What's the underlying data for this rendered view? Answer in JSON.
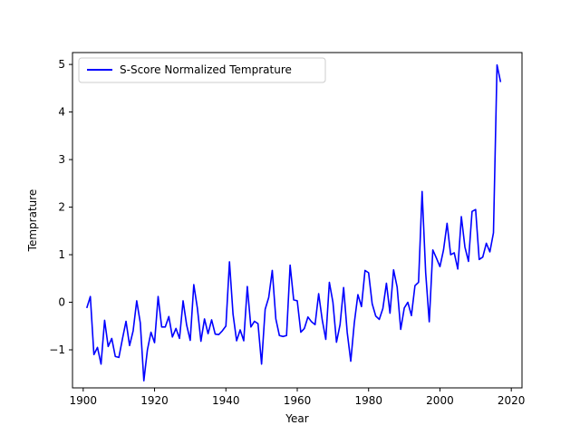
{
  "chart_data": {
    "type": "line",
    "title": "",
    "xlabel": "Year",
    "ylabel": "Temprature",
    "xlim": [
      1897,
      2023
    ],
    "ylim": [
      -1.8,
      5.25
    ],
    "x_ticks": [
      1900,
      1920,
      1940,
      1960,
      1980,
      2000,
      2020
    ],
    "y_ticks": [
      -1,
      0,
      1,
      2,
      3,
      4,
      5
    ],
    "grid": false,
    "legend_position": "upper left",
    "series": [
      {
        "name": "S-Score Normalized Temprature",
        "color": "#0000ff",
        "x": [
          1901,
          1902,
          1903,
          1904,
          1905,
          1906,
          1907,
          1908,
          1909,
          1910,
          1911,
          1912,
          1913,
          1914,
          1915,
          1916,
          1917,
          1918,
          1919,
          1920,
          1921,
          1922,
          1923,
          1924,
          1925,
          1926,
          1927,
          1928,
          1929,
          1930,
          1931,
          1932,
          1933,
          1934,
          1935,
          1936,
          1937,
          1938,
          1939,
          1940,
          1941,
          1942,
          1943,
          1944,
          1945,
          1946,
          1947,
          1948,
          1949,
          1950,
          1951,
          1952,
          1953,
          1954,
          1955,
          1956,
          1957,
          1958,
          1959,
          1960,
          1961,
          1962,
          1963,
          1964,
          1965,
          1966,
          1967,
          1968,
          1969,
          1970,
          1971,
          1972,
          1973,
          1974,
          1975,
          1976,
          1977,
          1978,
          1979,
          1980,
          1981,
          1982,
          1983,
          1984,
          1985,
          1986,
          1987,
          1988,
          1989,
          1990,
          1991,
          1992,
          1993,
          1994,
          1995,
          1996,
          1997,
          1998,
          1999,
          2000,
          2001,
          2002,
          2003,
          2004,
          2005,
          2006,
          2007,
          2008,
          2009,
          2010,
          2011,
          2012,
          2013,
          2014,
          2015,
          2016,
          2017
        ],
        "y": [
          -0.12,
          0.12,
          -1.1,
          -0.95,
          -1.3,
          -0.38,
          -0.93,
          -0.76,
          -1.14,
          -1.16,
          -0.77,
          -0.4,
          -0.91,
          -0.6,
          0.03,
          -0.43,
          -1.65,
          -1.0,
          -0.63,
          -0.85,
          0.12,
          -0.52,
          -0.52,
          -0.3,
          -0.73,
          -0.55,
          -0.76,
          0.03,
          -0.48,
          -0.8,
          0.37,
          -0.12,
          -0.82,
          -0.35,
          -0.66,
          -0.37,
          -0.67,
          -0.68,
          -0.6,
          -0.5,
          0.85,
          -0.25,
          -0.81,
          -0.58,
          -0.81,
          0.33,
          -0.52,
          -0.4,
          -0.45,
          -1.3,
          -0.15,
          0.1,
          0.67,
          -0.35,
          -0.7,
          -0.72,
          -0.7,
          0.78,
          0.05,
          0.03,
          -0.63,
          -0.55,
          -0.31,
          -0.41,
          -0.47,
          0.18,
          -0.37,
          -0.78,
          0.42,
          0.0,
          -0.84,
          -0.47,
          0.31,
          -0.63,
          -1.24,
          -0.43,
          0.16,
          -0.09,
          0.67,
          0.62,
          -0.03,
          -0.29,
          -0.36,
          -0.13,
          0.4,
          -0.23,
          0.68,
          0.32,
          -0.57,
          -0.12,
          0.0,
          -0.28,
          0.35,
          0.42,
          2.33,
          0.62,
          -0.41,
          1.1,
          0.93,
          0.75,
          1.1,
          1.66,
          1.0,
          1.04,
          0.7,
          1.8,
          1.16,
          0.86,
          1.91,
          1.95,
          0.9,
          0.95,
          1.24,
          1.06,
          1.46,
          4.99,
          4.63
        ]
      }
    ]
  }
}
